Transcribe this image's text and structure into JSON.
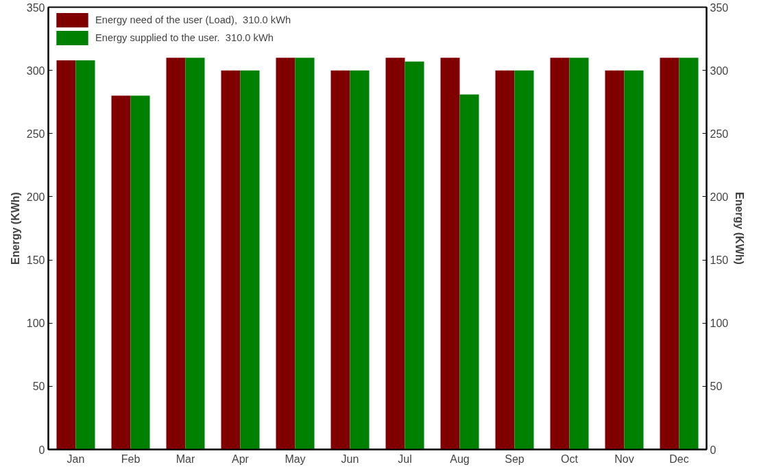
{
  "chart_data": {
    "type": "bar",
    "ylabel": "Energy (KWh)",
    "y2label": "Energy (KWh)",
    "categories": [
      "Jan",
      "Feb",
      "Mar",
      "Apr",
      "May",
      "Jun",
      "Jul",
      "Aug",
      "Sep",
      "Oct",
      "Nov",
      "Dec"
    ],
    "series": [
      {
        "name": "Energy need of the user (Load),  310.0 kWh",
        "color": "#800000",
        "values": [
          308,
          280,
          310,
          300,
          310,
          300,
          310,
          310,
          300,
          310,
          300,
          310
        ]
      },
      {
        "name": "Energy supplied to the user.  310.0 kWh",
        "color": "#008000",
        "values": [
          308,
          280,
          310,
          300,
          310,
          300,
          307,
          281,
          300,
          310,
          300,
          310
        ]
      }
    ],
    "ylim": [
      0,
      350
    ],
    "yticks": [
      0,
      50,
      100,
      150,
      200,
      250,
      300,
      350
    ],
    "y2lim": [
      0,
      350
    ],
    "y2ticks": [
      0,
      50,
      100,
      150,
      200,
      250,
      300,
      350
    ],
    "grid": false,
    "legend": "top left"
  }
}
